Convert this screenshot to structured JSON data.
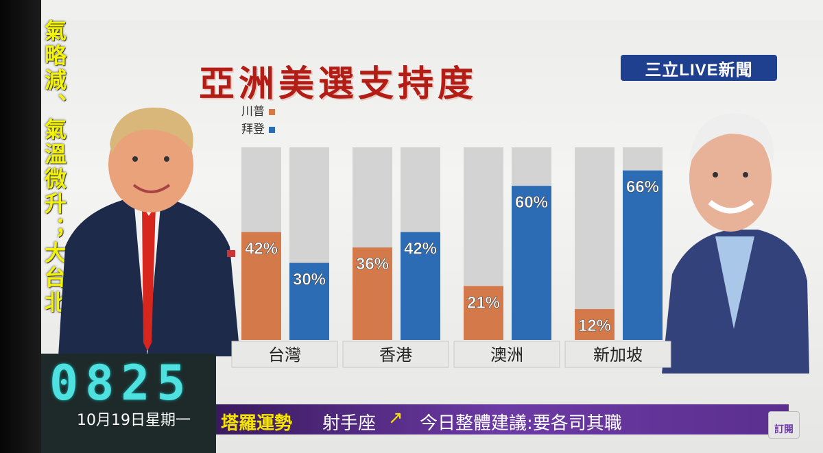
{
  "broadcast": {
    "title": "亞洲美選支持度",
    "logo": "三立LIVE新聞",
    "side_ticker": "氣略減、氣溫微升；大台北",
    "clock": "0825",
    "date": "10月19日星期一",
    "crawl_label": "塔羅運勢",
    "crawl_sign": "射手座",
    "crawl_icon": "↗",
    "crawl_text": "今日整體建議:要各司其職",
    "subscribe_label": "訂閱"
  },
  "legend": {
    "trump": "川普",
    "biden": "拜登"
  },
  "colors": {
    "trump": "#d47a4a",
    "biden": "#2b6cb4",
    "track": "#d3d3d3",
    "title": "#b21d16"
  },
  "chart_data": {
    "type": "bar",
    "title": "亞洲美選支持度",
    "categories": [
      "台灣",
      "香港",
      "澳洲",
      "新加坡"
    ],
    "series": [
      {
        "name": "川普",
        "values": [
          42,
          36,
          21,
          12
        ]
      },
      {
        "name": "拜登",
        "values": [
          30,
          42,
          60,
          66
        ]
      }
    ],
    "value_labels": [
      [
        "42%",
        "36%",
        "21%",
        "12%"
      ],
      [
        "30%",
        "42%",
        "60%",
        "66%"
      ]
    ],
    "ylim": [
      0,
      75
    ],
    "legend_position": "top-left",
    "grid": false
  }
}
